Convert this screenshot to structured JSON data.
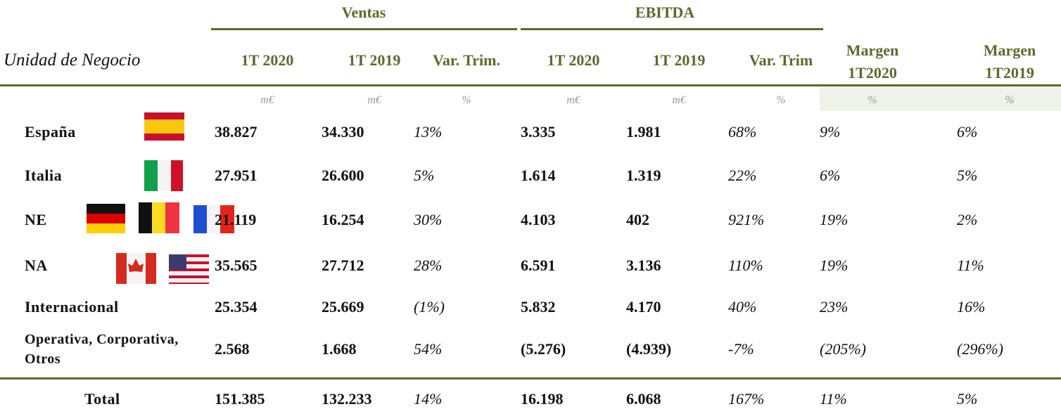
{
  "header": {
    "groups": [
      "Ventas",
      "EBITDA"
    ],
    "label": "Unidad de Negocio",
    "columns": [
      "1T 2020",
      "1T 2019",
      "Var. Trim.",
      "1T 2020",
      "1T 2019",
      "Var. Trim",
      "Margen 1T2020",
      "Margen 1T2019"
    ],
    "units": [
      "m€",
      "m€",
      "%",
      "m€",
      "m€",
      "%",
      "%",
      "%"
    ]
  },
  "table": {
    "rows": [
      [
        "España",
        "38.827",
        "34.330",
        "13%",
        "3.335",
        "1.981",
        "68%",
        "9%",
        "6%"
      ],
      [
        "Italia",
        "27.951",
        "26.600",
        "5%",
        "1.614",
        "1.319",
        "22%",
        "6%",
        "5%"
      ],
      [
        "NE",
        "21.119",
        "16.254",
        "30%",
        "4.103",
        "402",
        "921%",
        "19%",
        "2%"
      ],
      [
        "NA",
        "35.565",
        "27.712",
        "28%",
        "6.591",
        "3.136",
        "110%",
        "19%",
        "11%"
      ],
      [
        "Internacional",
        "25.354",
        "25.669",
        "(1%)",
        "5.832",
        "4.170",
        "40%",
        "23%",
        "16%"
      ],
      [
        "Operativa, Corporativa, Otros",
        "2.568",
        "1.668",
        "54%",
        "(5.276)",
        "(4.939)",
        "-7%",
        "(205%)",
        "(296%)"
      ]
    ],
    "total": [
      "Total",
      "151.385",
      "132.233",
      "14%",
      "16.198",
      "6.068",
      "167%",
      "11%",
      "5%"
    ]
  }
}
